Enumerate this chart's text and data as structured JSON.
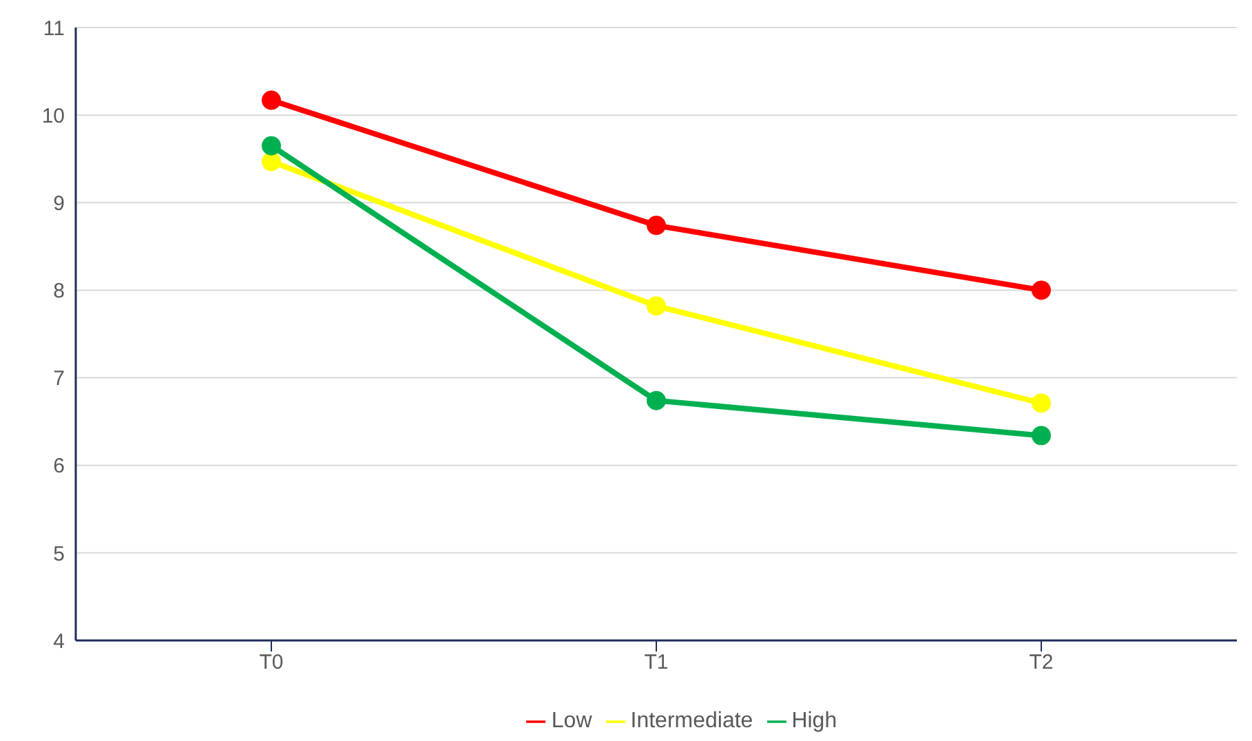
{
  "chart_data": {
    "type": "line",
    "categories": [
      "T0",
      "T1",
      "T2"
    ],
    "series": [
      {
        "name": "Low",
        "color": "#ff0000",
        "values": [
          10.17,
          8.74,
          8.0
        ]
      },
      {
        "name": "Intermediate",
        "color": "#ffff00",
        "values": [
          9.47,
          7.82,
          6.71
        ]
      },
      {
        "name": "High",
        "color": "#00b050",
        "values": [
          9.65,
          6.74,
          6.34
        ]
      }
    ],
    "ylim": [
      4,
      11
    ],
    "yticks": [
      4,
      5,
      6,
      7,
      8,
      9,
      10,
      11
    ],
    "grid": "y",
    "legend": "bottom",
    "marker": "circle",
    "line_style": "solid"
  }
}
